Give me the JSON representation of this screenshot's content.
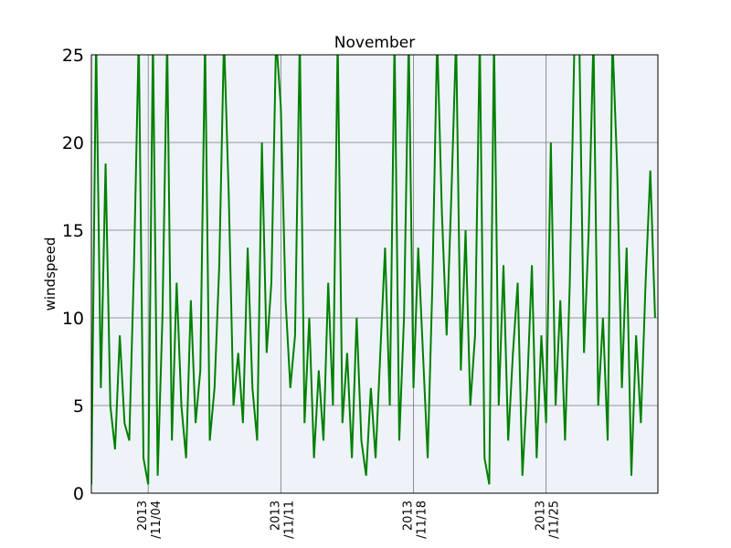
{
  "chart_data": {
    "type": "line",
    "title": "November",
    "ylabel": "windspeed",
    "x": [
      1,
      1.25,
      1.5,
      1.75,
      2,
      2.25,
      2.5,
      2.75,
      3,
      3.25,
      3.5,
      3.75,
      4,
      4.25,
      4.5,
      4.75,
      5,
      5.25,
      5.5,
      5.75,
      6,
      6.25,
      6.5,
      6.75,
      7,
      7.25,
      7.5,
      7.75,
      8,
      8.25,
      8.5,
      8.75,
      9,
      9.25,
      9.5,
      9.75,
      10,
      10.25,
      10.5,
      10.75,
      11,
      11.25,
      11.5,
      11.75,
      12,
      12.25,
      12.5,
      12.75,
      13,
      13.25,
      13.5,
      13.75,
      14,
      14.25,
      14.5,
      14.75,
      15,
      15.25,
      15.5,
      15.75,
      16,
      16.25,
      16.5,
      16.75,
      17,
      17.25,
      17.5,
      17.75,
      18,
      18.25,
      18.5,
      18.75,
      19,
      19.25,
      19.5,
      19.75,
      20,
      20.25,
      20.5,
      20.75,
      21,
      21.25,
      21.5,
      21.75,
      22,
      22.25,
      22.5,
      22.75,
      23,
      23.25,
      23.5,
      23.75,
      24,
      24.25,
      24.5,
      24.75,
      25,
      25.25,
      25.5,
      25.75,
      26,
      26.25,
      26.5,
      26.75,
      27,
      27.25,
      27.5,
      27.75,
      28,
      28.25,
      28.5,
      28.75,
      29,
      29.25,
      29.5,
      29.75,
      30,
      30.25,
      30.5,
      30.75
    ],
    "series": [
      {
        "name": "windspeed",
        "color": "#008000",
        "values": [
          0.5,
          26,
          6,
          18.8,
          5,
          2.5,
          9,
          4,
          3,
          13,
          26,
          2,
          0.5,
          26,
          1,
          10,
          26,
          3,
          12,
          5,
          2,
          11,
          4,
          7,
          26,
          3,
          6,
          13,
          26,
          17,
          5,
          8,
          4,
          14,
          6,
          3,
          20,
          8,
          12,
          26,
          22,
          11,
          6,
          9,
          26,
          4,
          10,
          2,
          7,
          3,
          12,
          5,
          26,
          4,
          8,
          2,
          10,
          3,
          1,
          6,
          2,
          8,
          14,
          5,
          26,
          3,
          10,
          26,
          6,
          14,
          8,
          2,
          12,
          26,
          16,
          9,
          17,
          26,
          7,
          15,
          5,
          9,
          26,
          2,
          0.5,
          26,
          5,
          13,
          3,
          8,
          12,
          1,
          6,
          13,
          2,
          9,
          4,
          20,
          5,
          11,
          3,
          12,
          26,
          26,
          8,
          15,
          26,
          5,
          10,
          3,
          26,
          18.5,
          6,
          14,
          1,
          9,
          4,
          12,
          18.4,
          10
        ]
      }
    ],
    "xlim": [
      1,
      30.9
    ],
    "xticks": [
      {
        "value": 4,
        "label": "2013\n/11/04"
      },
      {
        "value": 11,
        "label": "2013\n/11/11"
      },
      {
        "value": 18,
        "label": "2013\n/11/18"
      },
      {
        "value": 25,
        "label": "2013\n/11/25"
      }
    ],
    "ylim": [
      0,
      25
    ],
    "yticks": [
      0,
      5,
      10,
      15,
      20,
      25
    ],
    "grid": true,
    "background": "#eef3f9"
  }
}
